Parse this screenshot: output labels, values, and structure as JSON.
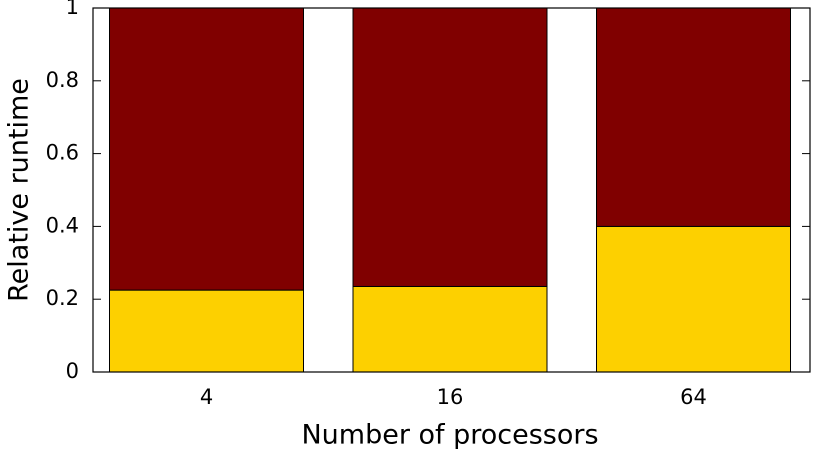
{
  "chart_data": {
    "type": "stacked-bar",
    "x_label": "Number of processors",
    "y_label": "Relative runtime",
    "categories": [
      "4",
      "16",
      "64"
    ],
    "series": [
      {
        "color": "#fdd000",
        "values": [
          0.225,
          0.235,
          0.4
        ]
      },
      {
        "color": "#800000",
        "values": [
          0.775,
          0.765,
          0.6
        ]
      }
    ],
    "ylim": [
      0,
      1
    ],
    "yticks": [
      0,
      0.2,
      0.4,
      0.6,
      0.8,
      1
    ]
  }
}
